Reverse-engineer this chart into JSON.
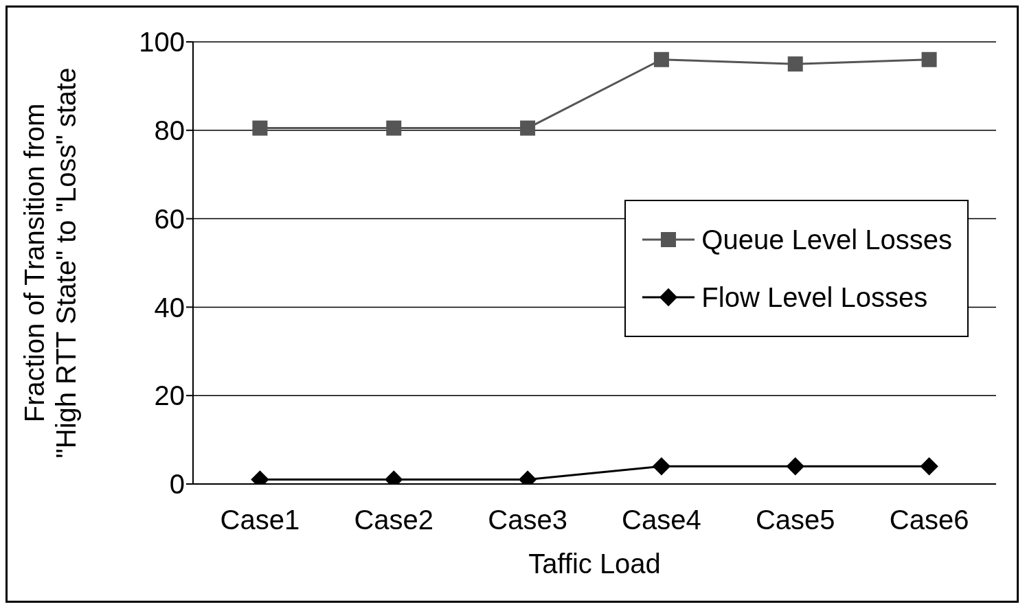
{
  "chart_data": {
    "type": "line",
    "xlabel": "Taffic Load",
    "ylabel": "Fraction of Transition from\n\"High RTT State\" to \"Loss\" state",
    "categories": [
      "Case1",
      "Case2",
      "Case3",
      "Case4",
      "Case5",
      "Case6"
    ],
    "series": [
      {
        "name": "Queue Level Losses",
        "color": "#555555",
        "marker": "square",
        "values": [
          80.5,
          80.5,
          80.5,
          96,
          95,
          96
        ]
      },
      {
        "name": "Flow Level Losses",
        "color": "#000000",
        "marker": "diamond",
        "values": [
          1,
          1,
          1,
          4,
          4,
          4
        ]
      }
    ],
    "ylim": [
      0,
      100
    ],
    "yticks": [
      0,
      20,
      40,
      60,
      80,
      100
    ],
    "grid": "y",
    "legend": "right",
    "line_style": "solid"
  }
}
